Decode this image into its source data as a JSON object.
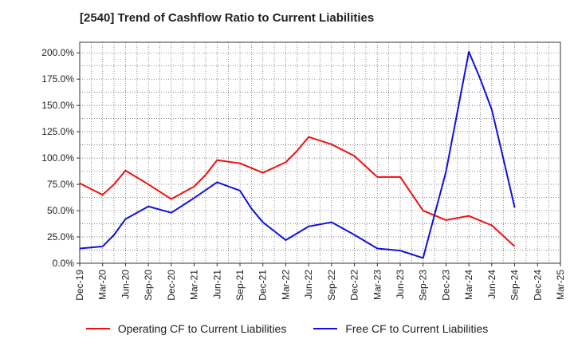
{
  "chart_data": {
    "type": "line",
    "title": "[2540]  Trend of Cashflow Ratio to Current Liabilities",
    "xlabel": "",
    "ylabel": "",
    "ylim": [
      0,
      210
    ],
    "y_ticks": [
      "0.0%",
      "25.0%",
      "50.0%",
      "75.0%",
      "100.0%",
      "125.0%",
      "150.0%",
      "175.0%",
      "200.0%"
    ],
    "y_tick_values": [
      0,
      25,
      50,
      75,
      100,
      125,
      150,
      175,
      200
    ],
    "x_tick_labels": [
      "Dec-19",
      "Mar-20",
      "Jun-20",
      "Sep-20",
      "Dec-20",
      "Mar-21",
      "Jun-21",
      "Sep-21",
      "Dec-21",
      "Mar-22",
      "Jun-22",
      "Sep-22",
      "Dec-22",
      "Mar-23",
      "Jun-23",
      "Sep-23",
      "Dec-23",
      "Mar-24",
      "Jun-24",
      "Sep-24",
      "Dec-24",
      "Mar-25"
    ],
    "x_count": 22,
    "grid": true,
    "legend_position": "bottom",
    "series": [
      {
        "name": "Operating CF to Current Liabilities",
        "color": "#ee1111",
        "points": [
          [
            0,
            76
          ],
          [
            1,
            65
          ],
          [
            1.5,
            75
          ],
          [
            2,
            88
          ],
          [
            3,
            75
          ],
          [
            4,
            61
          ],
          [
            5,
            73
          ],
          [
            5.5,
            84
          ],
          [
            6,
            98
          ],
          [
            7,
            95
          ],
          [
            8,
            86
          ],
          [
            9,
            96
          ],
          [
            9.5,
            107
          ],
          [
            10,
            120
          ],
          [
            11,
            113
          ],
          [
            12,
            102
          ],
          [
            13,
            82
          ],
          [
            14,
            82
          ],
          [
            15,
            50
          ],
          [
            16,
            41
          ],
          [
            17,
            45
          ],
          [
            18,
            36
          ],
          [
            18.5,
            26
          ],
          [
            19,
            16
          ]
        ]
      },
      {
        "name": "Free CF to Current Liabilities",
        "color": "#1111dd",
        "points": [
          [
            0,
            14
          ],
          [
            1,
            16
          ],
          [
            1.5,
            27
          ],
          [
            2,
            42
          ],
          [
            3,
            54
          ],
          [
            4,
            48
          ],
          [
            5,
            62
          ],
          [
            6,
            77
          ],
          [
            7,
            69
          ],
          [
            7.5,
            52
          ],
          [
            8,
            39
          ],
          [
            9,
            22
          ],
          [
            10,
            35
          ],
          [
            11,
            39
          ],
          [
            12,
            27
          ],
          [
            13,
            14
          ],
          [
            14,
            12
          ],
          [
            15,
            5
          ],
          [
            16,
            87
          ],
          [
            17,
            201
          ],
          [
            17.5,
            175
          ],
          [
            18,
            146
          ],
          [
            18.5,
            100
          ],
          [
            19,
            53
          ]
        ]
      }
    ]
  }
}
